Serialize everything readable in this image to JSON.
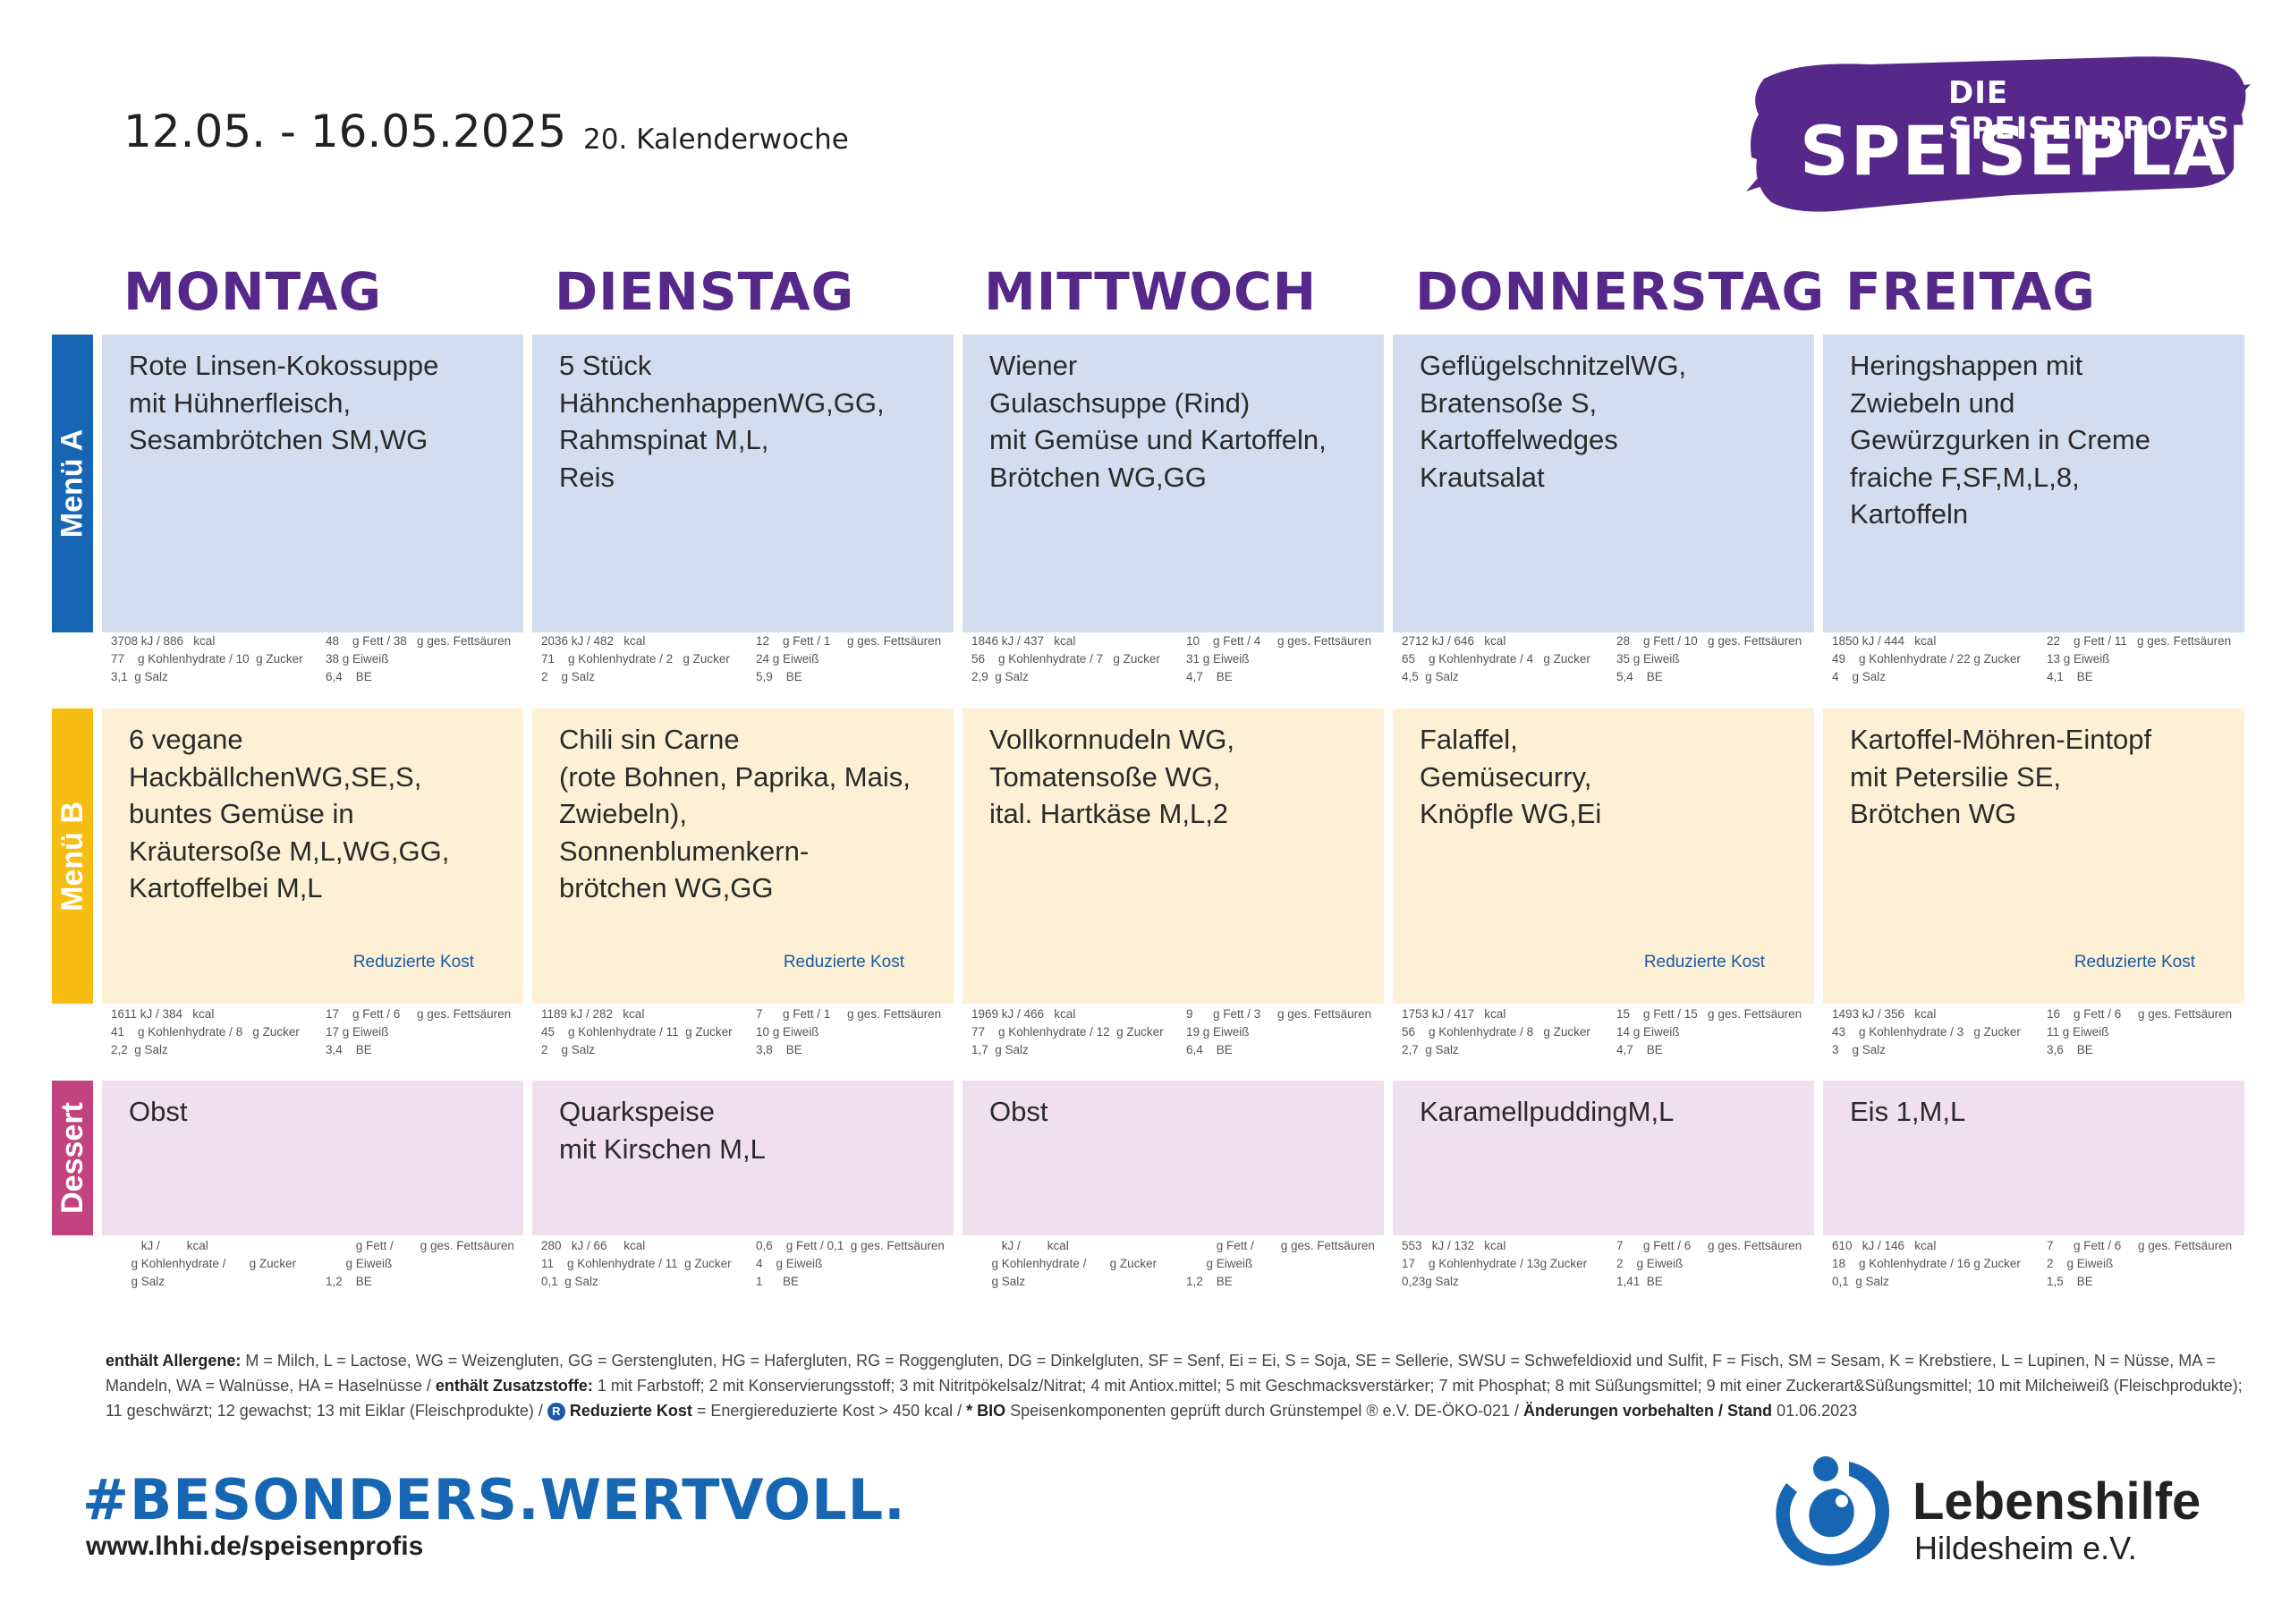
{
  "header": {
    "date_range": "12.05.  - 16.05.2025",
    "calendar_week": "20. Kalenderwoche",
    "brand_top": "DIE SPEISENPROFIS",
    "brand_main": "SPEISEPLAN",
    "brand_color": "#55288a"
  },
  "days": [
    "MONTAG",
    "DIENSTAG",
    "MITTWOCH",
    "DONNERSTAG",
    "FREITAG"
  ],
  "sections": {
    "menu_a": {
      "label": "Menü A",
      "color": "#1766b3"
    },
    "menu_b": {
      "label": "Menü B",
      "color": "#f7bd12"
    },
    "dessert": {
      "label": "Dessert",
      "color": "#c2437f"
    }
  },
  "reduced_label": "Reduzierte Kost",
  "menu_a": [
    {
      "dish": "Rote Linsen-Kokossuppe\nmit Hühnerfleisch,\nSesambrötchen SM,WG",
      "n1": "3708 kJ / 886   kcal",
      "n2": "77    g Kohlenhydrate / 10  g Zucker",
      "n3": "3,1  g Salz",
      "r1": "48    g Fett / 38   g ges. Fettsäuren",
      "r2": "38 g Eiweiß",
      "r3": "6,4    BE"
    },
    {
      "dish": "5 Stück\nHähnchenhappenWG,GG,\nRahmspinat M,L,\nReis",
      "n1": "2036 kJ / 482   kcal",
      "n2": "71    g Kohlenhydrate / 2   g Zucker",
      "n3": "2    g Salz",
      "r1": "12    g Fett / 1     g ges. Fettsäuren",
      "r2": "24 g Eiweiß",
      "r3": "5,9    BE"
    },
    {
      "dish": "Wiener\nGulaschsuppe (Rind)\nmit Gemüse und Kartoffeln,\nBrötchen WG,GG",
      "n1": "1846 kJ / 437   kcal",
      "n2": "56    g Kohlenhydrate / 7   g Zucker",
      "n3": "2,9  g Salz",
      "r1": "10    g Fett / 4     g ges. Fettsäuren",
      "r2": "31 g Eiweiß",
      "r3": "4,7    BE"
    },
    {
      "dish": "GeflügelschnitzelWG,\nBratensoße S,\nKartoffelwedges\nKrautsalat",
      "n1": "2712 kJ / 646   kcal",
      "n2": "65    g Kohlenhydrate / 4   g Zucker",
      "n3": "4,5  g Salz",
      "r1": "28    g Fett / 10   g ges. Fettsäuren",
      "r2": "35 g Eiweiß",
      "r3": "5,4    BE"
    },
    {
      "dish": "Heringshappen mit\nZwiebeln und\nGewürzgurken in Creme\nfraiche F,SF,M,L,8,\nKartoffeln",
      "n1": "1850 kJ / 444   kcal",
      "n2": "49    g Kohlenhydrate / 22 g Zucker",
      "n3": "4    g Salz",
      "r1": "22    g Fett / 11   g ges. Fettsäuren",
      "r2": "13 g Eiweiß",
      "r3": "4,1    BE"
    }
  ],
  "menu_b": [
    {
      "dish": "6 vegane\nHackbällchenWG,SE,S,\nbuntes Gemüse in\nKräutersoße M,L,WG,GG,\nKartoffelbei M,L",
      "reduced": true,
      "n1": "1611 kJ / 384   kcal",
      "n2": "41    g Kohlenhydrate / 8   g Zucker",
      "n3": "2,2  g Salz",
      "r1": "17    g Fett / 6     g ges. Fettsäuren",
      "r2": "17 g Eiweiß",
      "r3": "3,4    BE"
    },
    {
      "dish": "Chili sin Carne\n(rote Bohnen, Paprika, Mais,\nZwiebeln),\nSonnenblumenkern-\nbrötchen WG,GG",
      "reduced": true,
      "n1": "1189 kJ / 282   kcal",
      "n2": "45    g Kohlenhydrate / 11  g Zucker",
      "n3": "2    g Salz",
      "r1": "7      g Fett / 1     g ges. Fettsäuren",
      "r2": "10 g Eiweiß",
      "r3": "3,8    BE"
    },
    {
      "dish": "Vollkornnudeln WG,\nTomatensoße WG,\nital. Hartkäse M,L,2",
      "reduced": false,
      "n1": "1969 kJ / 466   kcal",
      "n2": "77    g Kohlenhydrate / 12  g Zucker",
      "n3": "1,7  g Salz",
      "r1": "9      g Fett / 3     g ges. Fettsäuren",
      "r2": "19 g Eiweiß",
      "r3": "6,4    BE"
    },
    {
      "dish": "Falaffel,\nGemüsecurry,\nKnöpfle WG,Ei",
      "reduced": true,
      "n1": "1753 kJ / 417   kcal",
      "n2": "56    g Kohlenhydrate / 8   g Zucker",
      "n3": "2,7  g Salz",
      "r1": "15    g Fett / 15   g ges. Fettsäuren",
      "r2": "14 g Eiweiß",
      "r3": "4,7    BE"
    },
    {
      "dish": "Kartoffel-Möhren-Eintopf\nmit Petersilie SE,\nBrötchen WG",
      "reduced": true,
      "n1": "1493 kJ / 356   kcal",
      "n2": "43    g Kohlenhydrate / 3   g Zucker",
      "n3": "3    g Salz",
      "r1": "16    g Fett / 6     g ges. Fettsäuren",
      "r2": "11 g Eiweiß",
      "r3": "3,6    BE"
    }
  ],
  "dessert": [
    {
      "dish": "Obst",
      "n1": "         kJ /        kcal",
      "n2": "      g Kohlenhydrate /       g Zucker",
      "n3": "      g Salz",
      "r1": "         g Fett /        g ges. Fettsäuren",
      "r2": "      g Eiweiß",
      "r3": "1,2    BE"
    },
    {
      "dish": "Quarkspeise\nmit Kirschen M,L",
      "n1": "280   kJ / 66     kcal",
      "n2": "11    g Kohlenhydrate / 11  g Zucker",
      "n3": "0,1  g Salz",
      "r1": "0,6    g Fett / 0,1  g ges. Fettsäuren",
      "r2": "4    g Eiweiß",
      "r3": "1      BE"
    },
    {
      "dish": "Obst",
      "n1": "         kJ /        kcal",
      "n2": "      g Kohlenhydrate /       g Zucker",
      "n3": "      g Salz",
      "r1": "         g Fett /        g ges. Fettsäuren",
      "r2": "      g Eiweiß",
      "r3": "1,2    BE"
    },
    {
      "dish": "KaramellpuddingM,L",
      "n1": "553   kJ / 132   kcal",
      "n2": "17    g Kohlenhydrate / 13g Zucker",
      "n3": "0,23g Salz",
      "r1": "7      g Fett / 6     g ges. Fettsäuren",
      "r2": "2    g Eiweiß",
      "r3": "1,41  BE"
    },
    {
      "dish": "Eis 1,M,L",
      "n1": "610   kJ / 146   kcal",
      "n2": "18    g Kohlenhydrate / 16 g Zucker",
      "n3": "0,1  g Salz",
      "r1": "7      g Fett / 6     g ges. Fettsäuren",
      "r2": "2    g Eiweiß",
      "r3": "1,5    BE"
    }
  ],
  "footer": {
    "allergens_label": "enthält Allergene:",
    "allergens_text": " M = Milch, L = Lactose, WG = Weizengluten, GG = Gerstengluten, HG = Hafergluten, RG = Roggengluten, DG = Dinkelgluten, SF = Senf, Ei = Ei, S = Soja, SE = Sellerie, SWSU = Schwefeldioxid und Sulfit, F = Fisch, SM = Sesam, K = Krebstiere, L = Lupinen, N = Nüsse, MA = Mandeln, WA = Walnüsse, HA =  Haselnüsse / ",
    "additives_label": "enthält Zusatzstoffe:",
    "additives_text": " 1 mit Farbstoff; 2 mit Konservierungsstoff; 3 mit Nitritpökelsalz/Nitrat; 4 mit Antiox.mittel; 5 mit Geschmacksverstärker; 7 mit Phosphat; 8 mit Süßungsmittel; 9 mit einer Zuckerart&Süßungsmittel; 10 mit Milcheiweiß (Fleischprodukte); 11 geschwärzt; 12 gewachst; 13 mit Eiklar (Fleischprodukte) / ",
    "r_badge": "R",
    "reduced_label": " Reduzierte Kost",
    "reduced_text": " = Energiereduzierte Kost > 450 kcal / ",
    "bio_label": "* BIO",
    "bio_text": " Speisenkomponenten geprüft durch Grünstempel ® e.V. DE-ÖKO-021 / ",
    "changes_label": "Änderungen vorbehalten / Stand",
    "stand_date": "   01.06.2023",
    "hashtag": "#BESONDERS.WERTVOLL.",
    "url": "www.lhhi.de/speisenprofis",
    "org_name": "Lebenshilfe",
    "org_sub": "Hildesheim e.V.",
    "logo_color": "#1766b3"
  }
}
